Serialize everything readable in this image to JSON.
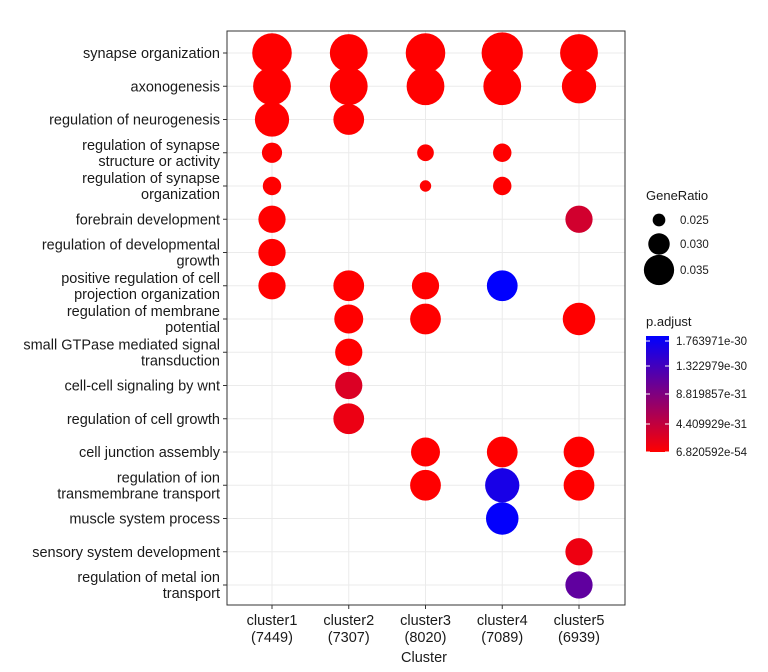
{
  "chart_data": {
    "type": "scatter",
    "xlabel": "Cluster",
    "categories": [
      "cluster1\n(7449)",
      "cluster2\n(7307)",
      "cluster3\n(8020)",
      "cluster4\n(7089)",
      "cluster5\n(6939)"
    ],
    "terms": [
      "synapse organization",
      "axonogenesis",
      "regulation of neurogenesis",
      "regulation of synapse\nstructure or activity",
      "regulation of synapse\norganization",
      "forebrain development",
      "regulation of developmental\ngrowth",
      "positive regulation of cell\nprojection organization",
      "regulation of membrane\npotential",
      "small GTPase mediated signal\ntransduction",
      "cell-cell signaling by wnt",
      "regulation of cell growth",
      "cell junction assembly",
      "regulation of ion\ntransmembrane transport",
      "muscle system process",
      "sensory system development",
      "regulation of metal ion\ntransport"
    ],
    "points": [
      {
        "term": 0,
        "cluster": 0,
        "gene_ratio": 0.038,
        "p_adjust": 0
      },
      {
        "term": 0,
        "cluster": 1,
        "gene_ratio": 0.037,
        "p_adjust": 0
      },
      {
        "term": 0,
        "cluster": 2,
        "gene_ratio": 0.038,
        "p_adjust": 0
      },
      {
        "term": 0,
        "cluster": 3,
        "gene_ratio": 0.039,
        "p_adjust": 0
      },
      {
        "term": 0,
        "cluster": 4,
        "gene_ratio": 0.037,
        "p_adjust": 0
      },
      {
        "term": 1,
        "cluster": 0,
        "gene_ratio": 0.037,
        "p_adjust": 0
      },
      {
        "term": 1,
        "cluster": 1,
        "gene_ratio": 0.037,
        "p_adjust": 0
      },
      {
        "term": 1,
        "cluster": 2,
        "gene_ratio": 0.037,
        "p_adjust": 0
      },
      {
        "term": 1,
        "cluster": 3,
        "gene_ratio": 0.037,
        "p_adjust": 0
      },
      {
        "term": 1,
        "cluster": 4,
        "gene_ratio": 0.035,
        "p_adjust": 0
      },
      {
        "term": 2,
        "cluster": 0,
        "gene_ratio": 0.035,
        "p_adjust": 0
      },
      {
        "term": 2,
        "cluster": 1,
        "gene_ratio": 0.033,
        "p_adjust": 0
      },
      {
        "term": 3,
        "cluster": 0,
        "gene_ratio": 0.027,
        "p_adjust": 0
      },
      {
        "term": 3,
        "cluster": 2,
        "gene_ratio": 0.025,
        "p_adjust": 0
      },
      {
        "term": 3,
        "cluster": 3,
        "gene_ratio": 0.026,
        "p_adjust": 0
      },
      {
        "term": 4,
        "cluster": 0,
        "gene_ratio": 0.026,
        "p_adjust": 0
      },
      {
        "term": 4,
        "cluster": 2,
        "gene_ratio": 0.022,
        "p_adjust": 0
      },
      {
        "term": 4,
        "cluster": 3,
        "gene_ratio": 0.026,
        "p_adjust": 0
      },
      {
        "term": 5,
        "cluster": 0,
        "gene_ratio": 0.031,
        "p_adjust": 0
      },
      {
        "term": 5,
        "cluster": 4,
        "gene_ratio": 0.031,
        "p_adjust": 3.2e-31
      },
      {
        "term": 6,
        "cluster": 0,
        "gene_ratio": 0.031,
        "p_adjust": 0
      },
      {
        "term": 7,
        "cluster": 0,
        "gene_ratio": 0.031,
        "p_adjust": 0
      },
      {
        "term": 7,
        "cluster": 1,
        "gene_ratio": 0.033,
        "p_adjust": 0
      },
      {
        "term": 7,
        "cluster": 2,
        "gene_ratio": 0.031,
        "p_adjust": 0
      },
      {
        "term": 7,
        "cluster": 3,
        "gene_ratio": 0.033,
        "p_adjust": 1.76e-30
      },
      {
        "term": 8,
        "cluster": 1,
        "gene_ratio": 0.032,
        "p_adjust": 0
      },
      {
        "term": 8,
        "cluster": 2,
        "gene_ratio": 0.033,
        "p_adjust": 0
      },
      {
        "term": 8,
        "cluster": 4,
        "gene_ratio": 0.034,
        "p_adjust": 0
      },
      {
        "term": 9,
        "cluster": 1,
        "gene_ratio": 0.031,
        "p_adjust": 0
      },
      {
        "term": 10,
        "cluster": 1,
        "gene_ratio": 0.031,
        "p_adjust": 2.5e-31
      },
      {
        "term": 11,
        "cluster": 1,
        "gene_ratio": 0.033,
        "p_adjust": 1.3e-31
      },
      {
        "term": 12,
        "cluster": 2,
        "gene_ratio": 0.032,
        "p_adjust": 0
      },
      {
        "term": 12,
        "cluster": 3,
        "gene_ratio": 0.033,
        "p_adjust": 0
      },
      {
        "term": 12,
        "cluster": 4,
        "gene_ratio": 0.033,
        "p_adjust": 0
      },
      {
        "term": 13,
        "cluster": 2,
        "gene_ratio": 0.033,
        "p_adjust": 0
      },
      {
        "term": 13,
        "cluster": 3,
        "gene_ratio": 0.035,
        "p_adjust": 1.6e-30
      },
      {
        "term": 13,
        "cluster": 4,
        "gene_ratio": 0.033,
        "p_adjust": 0
      },
      {
        "term": 14,
        "cluster": 3,
        "gene_ratio": 0.034,
        "p_adjust": 1.74e-30
      },
      {
        "term": 15,
        "cluster": 4,
        "gene_ratio": 0.031,
        "p_adjust": 1.2e-31
      },
      {
        "term": 16,
        "cluster": 4,
        "gene_ratio": 0.031,
        "p_adjust": 1.1e-30
      }
    ],
    "size_legend": {
      "title": "GeneRatio",
      "breaks": [
        0.025,
        0.03,
        0.035
      ],
      "labels": [
        "0.025",
        "0.030",
        "0.035"
      ]
    },
    "color_legend": {
      "title": "p.adjust",
      "low_color": "#ff0000",
      "high_color": "#0000ff",
      "labels": [
        "1.763971e-30",
        "1.322979e-30",
        "8.819857e-31",
        "4.409929e-31",
        "6.820592e-54"
      ],
      "values": [
        1.763971e-30,
        1.322979e-30,
        8.819857e-31,
        4.409929e-31,
        6.820592e-54
      ]
    },
    "grid": true,
    "legend_position": "right"
  }
}
